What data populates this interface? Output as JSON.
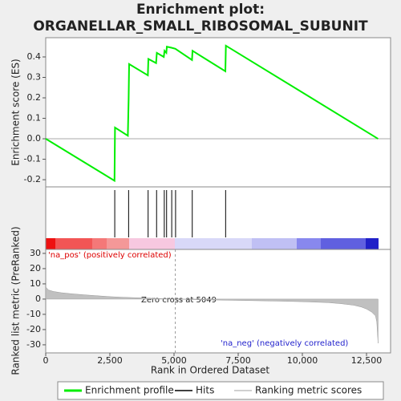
{
  "chart_data": [
    {
      "type": "line",
      "title": "Enrichment plot:",
      "subtitle": "ORGANELLAR_SMALL_RIBOSOMAL_SUBUNIT",
      "ylabel": "Enrichment score (ES)",
      "xlim": [
        0,
        13437
      ],
      "ylim": [
        -0.235,
        0.494
      ],
      "yticks": [
        -0.2,
        -0.1,
        {
          "value": 0,
          "label": "0.0"
        },
        0.1,
        0.2,
        0.3,
        0.4
      ],
      "series": [
        {
          "name": "Enrichment profile",
          "color": "#00ee00",
          "x": [
            0,
            2680,
            2700,
            3200,
            3230,
            3250,
            3980,
            4000,
            4300,
            4330,
            4600,
            4630,
            4700,
            4720,
            4900,
            5050,
            5700,
            5720,
            7000,
            7020,
            12950
          ],
          "values": [
            0,
            -0.205,
            0.055,
            0.015,
            0.19,
            0.365,
            0.31,
            0.39,
            0.37,
            0.42,
            0.4,
            0.43,
            0.42,
            0.45,
            0.445,
            0.44,
            0.385,
            0.43,
            0.33,
            0.455,
            0
          ]
        }
      ]
    },
    {
      "type": "hits",
      "xlim": [
        0,
        13437
      ],
      "series": [
        {
          "name": "Hits",
          "color": "#000000",
          "x": [
            2690,
            3230,
            3990,
            4320,
            4620,
            4710,
            4910,
            5060,
            5710,
            7010
          ]
        }
      ]
    },
    {
      "type": "area",
      "xlabel": "Rank in Ordered Dataset",
      "ylabel": "Ranked list metric (PreRanked)",
      "xlim": [
        0,
        13437
      ],
      "ylim": [
        -35.3,
        32.6
      ],
      "xticks": [
        0,
        {
          "value": 2500,
          "label": "2,500"
        },
        {
          "value": 5000,
          "label": "5,000"
        },
        {
          "value": 7500,
          "label": "7,500"
        },
        {
          "value": 10000,
          "label": "10,000"
        },
        {
          "value": 12500,
          "label": "12,500"
        }
      ],
      "yticks": [
        -30,
        -20,
        -10,
        0,
        10,
        20,
        30
      ],
      "zero_cross": 5049,
      "zero_cross_label": "Zero cross at 5049",
      "pos_label": "'na_pos' (positively correlated)",
      "neg_label": "'na_neg' (negatively correlated)",
      "series": [
        {
          "name": "Ranking metric scores",
          "color": "#c0c0c0",
          "x": [
            0,
            100,
            300,
            600,
            1000,
            1500,
            2000,
            2500,
            3000,
            3500,
            4000,
            4500,
            5049,
            6000,
            7000,
            8000,
            9000,
            10000,
            11000,
            11500,
            12000,
            12300,
            12500,
            12700,
            12850,
            12900,
            12950
          ],
          "values": [
            8,
            6,
            5,
            4.2,
            3.5,
            2.8,
            2.2,
            1.6,
            1.2,
            0.9,
            0.6,
            0.3,
            0,
            -0.4,
            -0.7,
            -1,
            -1.3,
            -1.7,
            -2.3,
            -3,
            -4,
            -5.2,
            -6.5,
            -8.5,
            -11,
            -15,
            -29
          ]
        }
      ]
    }
  ]
}
